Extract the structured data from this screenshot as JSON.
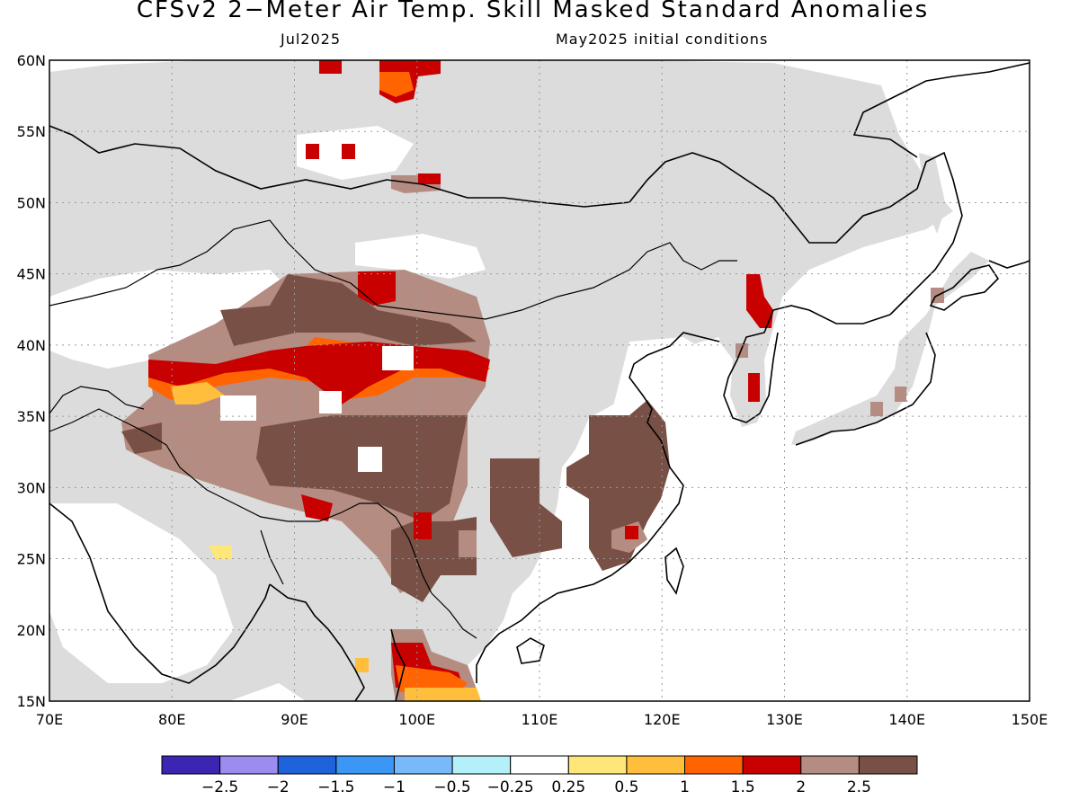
{
  "title": "CFSv2 2−Meter Air Temp. Skill Masked Standard Anomalies",
  "valid_month": "Jul2025",
  "init_conditions": "May2025 initial conditions",
  "colors": {
    "land_masked": "#dcdcdc",
    "legend": [
      "#3b26b4",
      "#9c8cf0",
      "#1f63dc",
      "#3c96f5",
      "#78b9fa",
      "#b4f0fa",
      "#ffffff",
      "#ffe678",
      "#ffbe3c",
      "#ff6400",
      "#c80000",
      "#b48c82",
      "#785046"
    ]
  },
  "legend_labels": [
    "−2.5",
    "−2",
    "−1.5",
    "−1",
    "−0.5",
    "−0.25",
    "0.25",
    "0.5",
    "1",
    "1.5",
    "2",
    "2.5"
  ],
  "map": {
    "lon_range": [
      70,
      150
    ],
    "lat_range": [
      15,
      60
    ],
    "x_ticks": [
      "70E",
      "80E",
      "90E",
      "100E",
      "110E",
      "120E",
      "130E",
      "140E",
      "150E"
    ],
    "y_ticks": [
      "15N",
      "20N",
      "25N",
      "30N",
      "35N",
      "40N",
      "45N",
      "50N",
      "55N",
      "60N"
    ]
  }
}
